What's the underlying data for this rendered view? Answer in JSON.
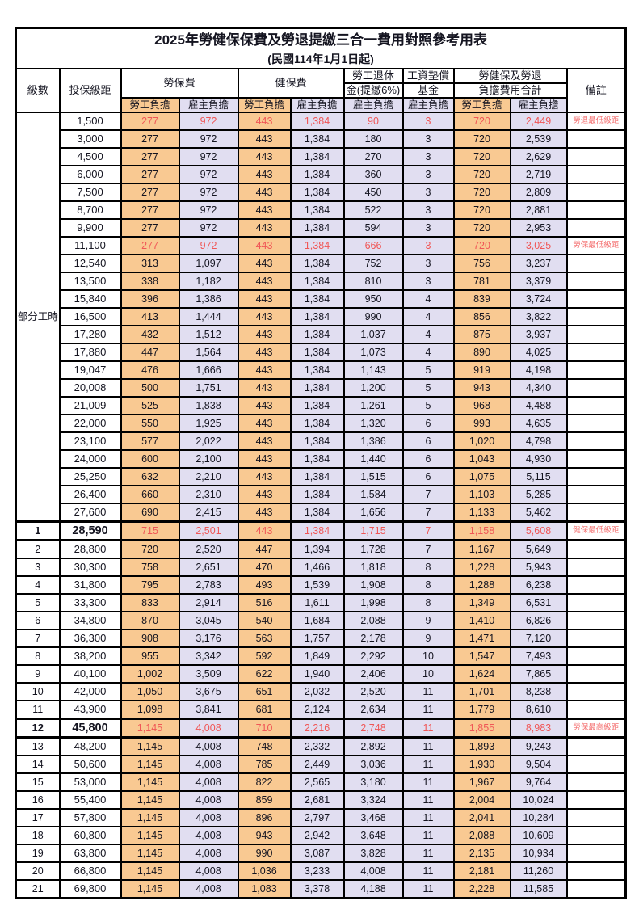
{
  "title": {
    "main": "2025年勞健保保費及勞退提繳三合一費用對照參考用表",
    "sub": "(民國114年1月1日起)"
  },
  "colors": {
    "employee_bg": "#f9c992",
    "employer_bg": "#e1def1",
    "red_text": "#f05757",
    "remark_red": "#f47070",
    "grid": "#000000"
  },
  "header": {
    "level": "級數",
    "bracket": "投保級距",
    "labor": "勞保費",
    "health": "健保費",
    "pension_l1": "勞工退休",
    "pension_l2": "金(提繳6%)",
    "wage_l1": "工資墊償",
    "wage_l2": "基金",
    "total_l1": "勞健保及勞退",
    "total_l2": "負擔費用合計",
    "remark": "備註",
    "employee": "勞工負擔",
    "employer": "雇主負擔"
  },
  "part_time_label": "部分工時",
  "rows": [
    {
      "section": "part",
      "level": "",
      "bracket": "1,500",
      "values": [
        "277",
        "972",
        "443",
        "1,384",
        "90",
        "3",
        "720",
        "2,449"
      ],
      "remark": "勞退最低級距",
      "red": true,
      "bold": false
    },
    {
      "section": "part",
      "level": "",
      "bracket": "3,000",
      "values": [
        "277",
        "972",
        "443",
        "1,384",
        "180",
        "3",
        "720",
        "2,539"
      ],
      "remark": "",
      "red": false,
      "bold": false
    },
    {
      "section": "part",
      "level": "",
      "bracket": "4,500",
      "values": [
        "277",
        "972",
        "443",
        "1,384",
        "270",
        "3",
        "720",
        "2,629"
      ],
      "remark": "",
      "red": false,
      "bold": false
    },
    {
      "section": "part",
      "level": "",
      "bracket": "6,000",
      "values": [
        "277",
        "972",
        "443",
        "1,384",
        "360",
        "3",
        "720",
        "2,719"
      ],
      "remark": "",
      "red": false,
      "bold": false
    },
    {
      "section": "part",
      "level": "",
      "bracket": "7,500",
      "values": [
        "277",
        "972",
        "443",
        "1,384",
        "450",
        "3",
        "720",
        "2,809"
      ],
      "remark": "",
      "red": false,
      "bold": false
    },
    {
      "section": "part",
      "level": "",
      "bracket": "8,700",
      "values": [
        "277",
        "972",
        "443",
        "1,384",
        "522",
        "3",
        "720",
        "2,881"
      ],
      "remark": "",
      "red": false,
      "bold": false
    },
    {
      "section": "part",
      "level": "",
      "bracket": "9,900",
      "values": [
        "277",
        "972",
        "443",
        "1,384",
        "594",
        "3",
        "720",
        "2,953"
      ],
      "remark": "",
      "red": false,
      "bold": false
    },
    {
      "section": "part",
      "level": "",
      "bracket": "11,100",
      "values": [
        "277",
        "972",
        "443",
        "1,384",
        "666",
        "3",
        "720",
        "3,025"
      ],
      "remark": "勞保最低級距",
      "red": true,
      "bold": false
    },
    {
      "section": "part",
      "level": "",
      "bracket": "12,540",
      "values": [
        "313",
        "1,097",
        "443",
        "1,384",
        "752",
        "3",
        "756",
        "3,237"
      ],
      "remark": "",
      "red": false,
      "bold": false
    },
    {
      "section": "part",
      "level": "",
      "bracket": "13,500",
      "values": [
        "338",
        "1,182",
        "443",
        "1,384",
        "810",
        "3",
        "781",
        "3,379"
      ],
      "remark": "",
      "red": false,
      "bold": false
    },
    {
      "section": "part",
      "level": "",
      "bracket": "15,840",
      "values": [
        "396",
        "1,386",
        "443",
        "1,384",
        "950",
        "4",
        "839",
        "3,724"
      ],
      "remark": "",
      "red": false,
      "bold": false
    },
    {
      "section": "part",
      "level": "",
      "bracket": "16,500",
      "values": [
        "413",
        "1,444",
        "443",
        "1,384",
        "990",
        "4",
        "856",
        "3,822"
      ],
      "remark": "",
      "red": false,
      "bold": false
    },
    {
      "section": "part",
      "level": "",
      "bracket": "17,280",
      "values": [
        "432",
        "1,512",
        "443",
        "1,384",
        "1,037",
        "4",
        "875",
        "3,937"
      ],
      "remark": "",
      "red": false,
      "bold": false
    },
    {
      "section": "part",
      "level": "",
      "bracket": "17,880",
      "values": [
        "447",
        "1,564",
        "443",
        "1,384",
        "1,073",
        "4",
        "890",
        "4,025"
      ],
      "remark": "",
      "red": false,
      "bold": false
    },
    {
      "section": "part",
      "level": "",
      "bracket": "19,047",
      "values": [
        "476",
        "1,666",
        "443",
        "1,384",
        "1,143",
        "5",
        "919",
        "4,198"
      ],
      "remark": "",
      "red": false,
      "bold": false
    },
    {
      "section": "part",
      "level": "",
      "bracket": "20,008",
      "values": [
        "500",
        "1,751",
        "443",
        "1,384",
        "1,200",
        "5",
        "943",
        "4,340"
      ],
      "remark": "",
      "red": false,
      "bold": false
    },
    {
      "section": "part",
      "level": "",
      "bracket": "21,009",
      "values": [
        "525",
        "1,838",
        "443",
        "1,384",
        "1,261",
        "5",
        "968",
        "4,488"
      ],
      "remark": "",
      "red": false,
      "bold": false
    },
    {
      "section": "part",
      "level": "",
      "bracket": "22,000",
      "values": [
        "550",
        "1,925",
        "443",
        "1,384",
        "1,320",
        "6",
        "993",
        "4,635"
      ],
      "remark": "",
      "red": false,
      "bold": false
    },
    {
      "section": "part",
      "level": "",
      "bracket": "23,100",
      "values": [
        "577",
        "2,022",
        "443",
        "1,384",
        "1,386",
        "6",
        "1,020",
        "4,798"
      ],
      "remark": "",
      "red": false,
      "bold": false
    },
    {
      "section": "part",
      "level": "",
      "bracket": "24,000",
      "values": [
        "600",
        "2,100",
        "443",
        "1,384",
        "1,440",
        "6",
        "1,043",
        "4,930"
      ],
      "remark": "",
      "red": false,
      "bold": false
    },
    {
      "section": "part",
      "level": "",
      "bracket": "25,250",
      "values": [
        "632",
        "2,210",
        "443",
        "1,384",
        "1,515",
        "6",
        "1,075",
        "5,115"
      ],
      "remark": "",
      "red": false,
      "bold": false
    },
    {
      "section": "part",
      "level": "",
      "bracket": "26,400",
      "values": [
        "660",
        "2,310",
        "443",
        "1,384",
        "1,584",
        "7",
        "1,103",
        "5,285"
      ],
      "remark": "",
      "red": false,
      "bold": false
    },
    {
      "section": "part",
      "level": "",
      "bracket": "27,600",
      "values": [
        "690",
        "2,415",
        "443",
        "1,384",
        "1,656",
        "7",
        "1,133",
        "5,462"
      ],
      "remark": "",
      "red": false,
      "bold": false
    },
    {
      "section": "num",
      "level": "1",
      "bracket": "28,590",
      "values": [
        "715",
        "2,501",
        "443",
        "1,384",
        "1,715",
        "7",
        "1,158",
        "5,608"
      ],
      "remark": "健保最低級距",
      "red": true,
      "bold": true
    },
    {
      "section": "num",
      "level": "2",
      "bracket": "28,800",
      "values": [
        "720",
        "2,520",
        "447",
        "1,394",
        "1,728",
        "7",
        "1,167",
        "5,649"
      ],
      "remark": "",
      "red": false,
      "bold": false
    },
    {
      "section": "num",
      "level": "3",
      "bracket": "30,300",
      "values": [
        "758",
        "2,651",
        "470",
        "1,466",
        "1,818",
        "8",
        "1,228",
        "5,943"
      ],
      "remark": "",
      "red": false,
      "bold": false
    },
    {
      "section": "num",
      "level": "4",
      "bracket": "31,800",
      "values": [
        "795",
        "2,783",
        "493",
        "1,539",
        "1,908",
        "8",
        "1,288",
        "6,238"
      ],
      "remark": "",
      "red": false,
      "bold": false
    },
    {
      "section": "num",
      "level": "5",
      "bracket": "33,300",
      "values": [
        "833",
        "2,914",
        "516",
        "1,611",
        "1,998",
        "8",
        "1,349",
        "6,531"
      ],
      "remark": "",
      "red": false,
      "bold": false
    },
    {
      "section": "num",
      "level": "6",
      "bracket": "34,800",
      "values": [
        "870",
        "3,045",
        "540",
        "1,684",
        "2,088",
        "9",
        "1,410",
        "6,826"
      ],
      "remark": "",
      "red": false,
      "bold": false
    },
    {
      "section": "num",
      "level": "7",
      "bracket": "36,300",
      "values": [
        "908",
        "3,176",
        "563",
        "1,757",
        "2,178",
        "9",
        "1,471",
        "7,120"
      ],
      "remark": "",
      "red": false,
      "bold": false
    },
    {
      "section": "num",
      "level": "8",
      "bracket": "38,200",
      "values": [
        "955",
        "3,342",
        "592",
        "1,849",
        "2,292",
        "10",
        "1,547",
        "7,493"
      ],
      "remark": "",
      "red": false,
      "bold": false
    },
    {
      "section": "num",
      "level": "9",
      "bracket": "40,100",
      "values": [
        "1,002",
        "3,509",
        "622",
        "1,940",
        "2,406",
        "10",
        "1,624",
        "7,865"
      ],
      "remark": "",
      "red": false,
      "bold": false
    },
    {
      "section": "num",
      "level": "10",
      "bracket": "42,000",
      "values": [
        "1,050",
        "3,675",
        "651",
        "2,032",
        "2,520",
        "11",
        "1,701",
        "8,238"
      ],
      "remark": "",
      "red": false,
      "bold": false
    },
    {
      "section": "num",
      "level": "11",
      "bracket": "43,900",
      "values": [
        "1,098",
        "3,841",
        "681",
        "2,124",
        "2,634",
        "11",
        "1,779",
        "8,610"
      ],
      "remark": "",
      "red": false,
      "bold": false
    },
    {
      "section": "num",
      "level": "12",
      "bracket": "45,800",
      "values": [
        "1,145",
        "4,008",
        "710",
        "2,216",
        "2,748",
        "11",
        "1,855",
        "8,983"
      ],
      "remark": "勞保最高級距",
      "red": true,
      "bold": true
    },
    {
      "section": "num",
      "level": "13",
      "bracket": "48,200",
      "values": [
        "1,145",
        "4,008",
        "748",
        "2,332",
        "2,892",
        "11",
        "1,893",
        "9,243"
      ],
      "remark": "",
      "red": false,
      "bold": false
    },
    {
      "section": "num",
      "level": "14",
      "bracket": "50,600",
      "values": [
        "1,145",
        "4,008",
        "785",
        "2,449",
        "3,036",
        "11",
        "1,930",
        "9,504"
      ],
      "remark": "",
      "red": false,
      "bold": false
    },
    {
      "section": "num",
      "level": "15",
      "bracket": "53,000",
      "values": [
        "1,145",
        "4,008",
        "822",
        "2,565",
        "3,180",
        "11",
        "1,967",
        "9,764"
      ],
      "remark": "",
      "red": false,
      "bold": false
    },
    {
      "section": "num",
      "level": "16",
      "bracket": "55,400",
      "values": [
        "1,145",
        "4,008",
        "859",
        "2,681",
        "3,324",
        "11",
        "2,004",
        "10,024"
      ],
      "remark": "",
      "red": false,
      "bold": false
    },
    {
      "section": "num",
      "level": "17",
      "bracket": "57,800",
      "values": [
        "1,145",
        "4,008",
        "896",
        "2,797",
        "3,468",
        "11",
        "2,041",
        "10,284"
      ],
      "remark": "",
      "red": false,
      "bold": false
    },
    {
      "section": "num",
      "level": "18",
      "bracket": "60,800",
      "values": [
        "1,145",
        "4,008",
        "943",
        "2,942",
        "3,648",
        "11",
        "2,088",
        "10,609"
      ],
      "remark": "",
      "red": false,
      "bold": false
    },
    {
      "section": "num",
      "level": "19",
      "bracket": "63,800",
      "values": [
        "1,145",
        "4,008",
        "990",
        "3,087",
        "3,828",
        "11",
        "2,135",
        "10,934"
      ],
      "remark": "",
      "red": false,
      "bold": false
    },
    {
      "section": "num",
      "level": "20",
      "bracket": "66,800",
      "values": [
        "1,145",
        "4,008",
        "1,036",
        "3,233",
        "4,008",
        "11",
        "2,181",
        "11,260"
      ],
      "remark": "",
      "red": false,
      "bold": false
    },
    {
      "section": "num",
      "level": "21",
      "bracket": "69,800",
      "values": [
        "1,145",
        "4,008",
        "1,083",
        "3,378",
        "4,188",
        "11",
        "2,228",
        "11,585"
      ],
      "remark": "",
      "red": false,
      "bold": false
    }
  ]
}
